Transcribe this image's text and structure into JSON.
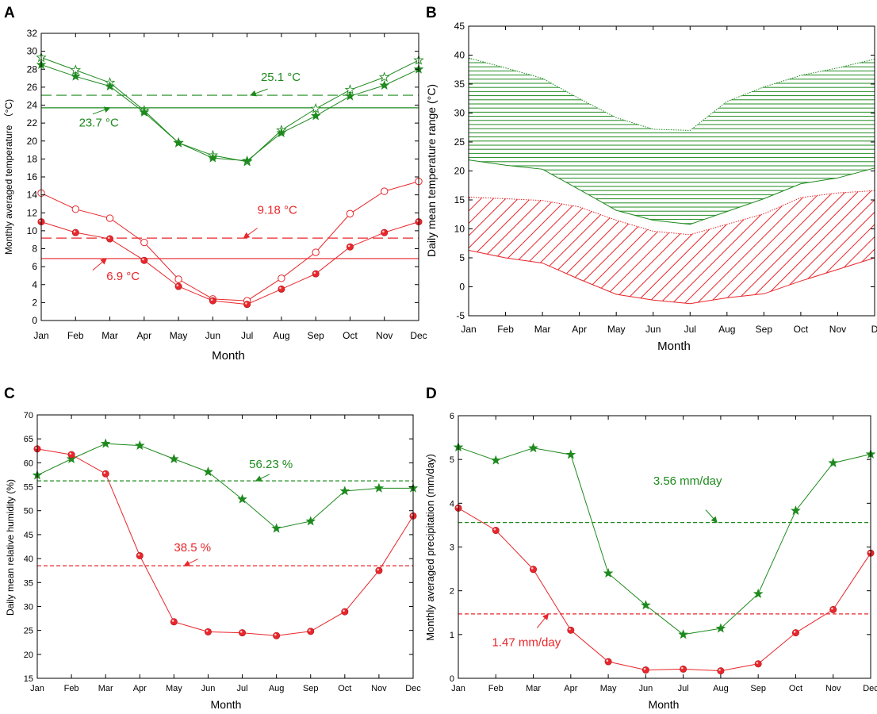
{
  "colors": {
    "green": "#1e8a1e",
    "red": "#e8262b",
    "axis": "#000000",
    "dark_green": "#1a6b1a"
  },
  "months": [
    "Jan",
    "Feb",
    "Mar",
    "Apr",
    "May",
    "Jun",
    "Jul",
    "Aug",
    "Sep",
    "Oct",
    "Nov",
    "Dec"
  ],
  "chart_data": [
    {
      "id": "A",
      "panel_label": "A",
      "type": "line",
      "xlabel": "Month",
      "ylabel": "Monthly averaged temperature （°C)",
      "ylim": [
        0,
        32
      ],
      "yticks": [
        0,
        2,
        4,
        6,
        8,
        10,
        12,
        14,
        16,
        18,
        20,
        22,
        24,
        26,
        28,
        30,
        32
      ],
      "xtick_labels": [
        "Jan",
        "Feb",
        "Mar",
        "Apr",
        "May",
        "Jun",
        "Jul",
        "Aug",
        "Sep",
        "Oct",
        "Nov",
        "Dec"
      ],
      "series": [
        {
          "name": "green-open-star",
          "color": "green",
          "marker": "star-open",
          "values": [
            29.3,
            27.9,
            26.5,
            23.4,
            19.8,
            18.4,
            17.7,
            21.2,
            23.6,
            25.7,
            27.1,
            29.0
          ]
        },
        {
          "name": "green-filled-star",
          "color": "green",
          "marker": "star-filled",
          "values": [
            28.5,
            27.2,
            26.1,
            23.2,
            19.8,
            18.1,
            17.8,
            20.9,
            22.8,
            25.0,
            26.2,
            28.0
          ]
        },
        {
          "name": "red-open-circle",
          "color": "red",
          "marker": "circle-open",
          "values": [
            14.2,
            12.4,
            11.4,
            8.7,
            4.6,
            2.4,
            2.2,
            4.7,
            7.6,
            11.9,
            14.4,
            15.5
          ]
        },
        {
          "name": "red-filled-circle",
          "color": "red",
          "marker": "circle-filled",
          "values": [
            11.0,
            9.8,
            9.1,
            6.7,
            3.8,
            2.2,
            1.8,
            3.5,
            5.2,
            8.2,
            9.8,
            11.0
          ]
        }
      ],
      "hlines": [
        {
          "y": 25.1,
          "color": "green",
          "dash": "long"
        },
        {
          "y": 23.7,
          "color": "green",
          "dash": "solid"
        },
        {
          "y": 9.18,
          "color": "red",
          "dash": "long"
        },
        {
          "y": 6.9,
          "color": "red",
          "dash": "solid"
        }
      ],
      "annotations": [
        {
          "text": "25.1 °C",
          "color": "green",
          "x": 6.4,
          "y": 26.7,
          "arrow_to": [
            6.1,
            25.1
          ],
          "arrow_from": [
            6.6,
            25.8
          ]
        },
        {
          "text": "23.7 °C",
          "color": "green",
          "x": 1.1,
          "y": 21.6,
          "arrow_to": [
            2.0,
            23.7
          ],
          "arrow_from": [
            1.5,
            23.0
          ]
        },
        {
          "text": "9.18 °C",
          "color": "red",
          "x": 6.3,
          "y": 11.9,
          "arrow_to": [
            5.9,
            9.18
          ],
          "arrow_from": [
            6.3,
            10.3
          ]
        },
        {
          "text": "6.9 °C",
          "color": "red",
          "x": 1.9,
          "y": 4.5,
          "arrow_to": [
            1.9,
            6.9
          ],
          "arrow_from": [
            1.5,
            5.6
          ]
        }
      ]
    },
    {
      "id": "B",
      "panel_label": "B",
      "type": "area",
      "xlabel": "Month",
      "ylabel": "Daily mean temperature range (°C)",
      "ylim": [
        -5,
        45
      ],
      "yticks": [
        -5,
        0,
        5,
        10,
        15,
        20,
        25,
        30,
        35,
        40,
        45
      ],
      "xtick_labels": [
        "Jan",
        "Feb",
        "Mar",
        "Apr",
        "May",
        "Jun",
        "Jul",
        "Aug",
        "Sep",
        "Oct",
        "Nov",
        "D"
      ],
      "bands": [
        {
          "name": "green-range",
          "color": "green",
          "hatch": "horizontal",
          "upper": [
            39.5,
            37.8,
            36.0,
            32.5,
            29.2,
            27.2,
            27.0,
            32.0,
            34.5,
            36.5,
            37.8,
            39.3
          ],
          "lower": [
            21.9,
            21.0,
            20.3,
            16.8,
            13.2,
            11.5,
            10.8,
            13.0,
            15.2,
            17.8,
            18.8,
            20.5
          ]
        },
        {
          "name": "red-range",
          "color": "red",
          "hatch": "diagonal",
          "upper": [
            15.5,
            15.2,
            14.9,
            13.8,
            11.5,
            9.6,
            9.0,
            10.8,
            12.6,
            15.4,
            16.2,
            16.6
          ],
          "lower": [
            6.3,
            5.0,
            4.1,
            1.3,
            -1.3,
            -2.3,
            -2.9,
            -1.9,
            -1.2,
            1.0,
            3.0,
            5.0
          ]
        }
      ]
    },
    {
      "id": "C",
      "panel_label": "C",
      "type": "line",
      "xlabel": "Month",
      "ylabel": "Daily mean relative humidity (%)",
      "ylim": [
        15,
        70
      ],
      "yticks": [
        15,
        20,
        25,
        30,
        35,
        40,
        45,
        50,
        55,
        60,
        65,
        70
      ],
      "xtick_labels": [
        "Jan",
        "Feb",
        "Mar",
        "Apr",
        "May",
        "Jun",
        "Jul",
        "Aug",
        "Sep",
        "Oct",
        "Nov",
        "Dec"
      ],
      "series": [
        {
          "name": "green-star",
          "color": "green",
          "marker": "star-filled",
          "values": [
            57.4,
            60.8,
            64.0,
            63.6,
            60.8,
            58.1,
            52.4,
            46.3,
            47.8,
            54.1,
            54.7,
            54.7
          ]
        },
        {
          "name": "red-circle",
          "color": "red",
          "marker": "circle-filled",
          "values": [
            62.9,
            61.7,
            57.7,
            40.6,
            26.8,
            24.7,
            24.5,
            23.9,
            24.8,
            28.9,
            37.5,
            48.9
          ]
        }
      ],
      "hlines": [
        {
          "y": 56.23,
          "color": "green",
          "dash": "short"
        },
        {
          "y": 38.5,
          "color": "red",
          "dash": "short"
        }
      ],
      "annotations": [
        {
          "text": "56.23 %",
          "color": "green",
          "x": 6.2,
          "y": 58.9,
          "arrow_to": [
            6.4,
            56.23
          ],
          "arrow_from": [
            6.8,
            57.6
          ]
        },
        {
          "text": "38.5 %",
          "color": "red",
          "x": 4.0,
          "y": 41.5,
          "arrow_to": [
            4.3,
            38.5
          ],
          "arrow_from": [
            4.7,
            39.9
          ]
        }
      ]
    },
    {
      "id": "D",
      "panel_label": "D",
      "type": "line",
      "xlabel": "Month",
      "ylabel": "Monthly averaged precipitation (mm/day)",
      "ylim": [
        0,
        6
      ],
      "yticks": [
        0,
        1,
        2,
        3,
        4,
        5,
        6
      ],
      "xtick_labels": [
        "Jan",
        "Feb",
        "Mar",
        "Apr",
        "May",
        "Jun",
        "Jul",
        "Aug",
        "Sep",
        "Oct",
        "Nov",
        "Dec"
      ],
      "series": [
        {
          "name": "green-star",
          "color": "green",
          "marker": "star-filled",
          "values": [
            5.28,
            4.98,
            5.26,
            5.11,
            2.4,
            1.67,
            1.0,
            1.14,
            1.93,
            3.83,
            4.92,
            5.12
          ]
        },
        {
          "name": "red-circle",
          "color": "red",
          "marker": "circle-filled",
          "values": [
            3.89,
            3.38,
            2.49,
            1.1,
            0.38,
            0.19,
            0.21,
            0.17,
            0.33,
            1.04,
            1.57,
            2.86
          ]
        }
      ],
      "hlines": [
        {
          "y": 3.56,
          "color": "green",
          "dash": "short"
        },
        {
          "y": 1.47,
          "color": "red",
          "dash": "short"
        }
      ],
      "annotations": [
        {
          "text": "3.56 mm/day",
          "color": "green",
          "x": 5.2,
          "y": 4.42,
          "arrow_to": [
            6.9,
            3.56
          ],
          "arrow_from": [
            6.6,
            3.85
          ]
        },
        {
          "text": "1.47 mm/day",
          "color": "red",
          "x": 0.9,
          "y": 0.73,
          "arrow_to": [
            2.4,
            1.47
          ],
          "arrow_from": [
            2.1,
            1.15
          ]
        }
      ]
    }
  ]
}
